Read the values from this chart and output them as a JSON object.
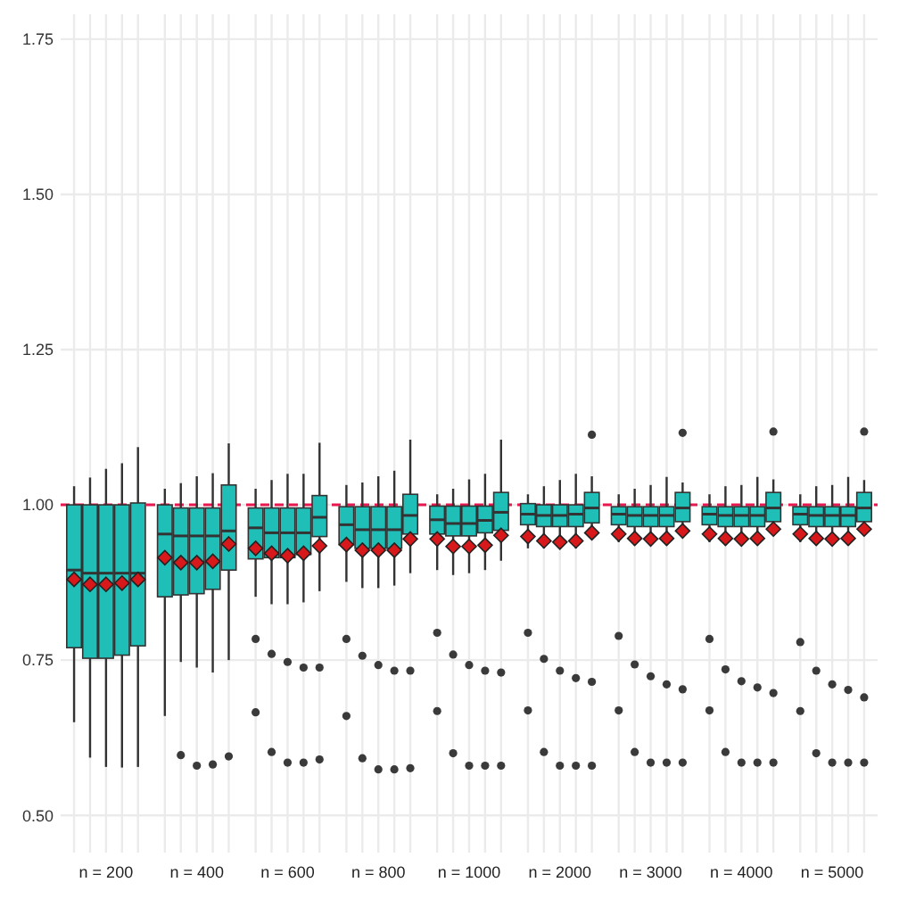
{
  "chart_data": {
    "type": "box",
    "categories": [
      "n = 200",
      "n = 400",
      "n = 600",
      "n = 800",
      "n = 1000",
      "n = 2000",
      "n = 3000",
      "n = 4000",
      "n = 5000"
    ],
    "ylim": [
      0.44,
      1.79
    ],
    "yticks": [
      {
        "value": 0.5,
        "label": "0.50"
      },
      {
        "value": 0.75,
        "label": "0.75"
      },
      {
        "value": 1,
        "label": "1.00"
      },
      {
        "value": 1.25,
        "label": "1.25"
      },
      {
        "value": 1.5,
        "label": "1.50"
      },
      {
        "value": 1.75,
        "label": "1.75"
      }
    ],
    "grid": true,
    "ref_lines": [
      {
        "axis": "y",
        "value": 1,
        "color": "#e8174f",
        "line_style": "dashed"
      }
    ],
    "series": [
      {
        "color": "#1fbfb8",
        "boxes": [
          {
            "low": 0.65,
            "q1": 0.77,
            "median": 0.895,
            "q3": 1.0,
            "high": 1.03,
            "mean": 0.88
          },
          {
            "low": 0.66,
            "q1": 0.852,
            "median": 0.953,
            "q3": 1.0,
            "high": 1.026,
            "mean": 0.915
          },
          {
            "low": 0.852,
            "q1": 0.913,
            "median": 0.963,
            "q3": 0.995,
            "high": 1.026,
            "mean": 0.93,
            "outliers": [
              0.784,
              0.666
            ]
          },
          {
            "low": 0.876,
            "q1": 0.936,
            "median": 0.968,
            "q3": 0.997,
            "high": 1.032,
            "mean": 0.936,
            "outliers": [
              0.784,
              0.66
            ]
          },
          {
            "low": 0.895,
            "q1": 0.953,
            "median": 0.976,
            "q3": 0.998,
            "high": 1.017,
            "mean": 0.945,
            "outliers": [
              0.794,
              0.668
            ]
          },
          {
            "low": 0.93,
            "q1": 0.968,
            "median": 0.985,
            "q3": 1.002,
            "high": 1.017,
            "mean": 0.949,
            "outliers": [
              0.794,
              0.669
            ]
          },
          {
            "low": 0.94,
            "q1": 0.968,
            "median": 0.985,
            "q3": 0.997,
            "high": 1.017,
            "mean": 0.953,
            "outliers": [
              0.789,
              0.669
            ]
          },
          {
            "low": 0.94,
            "q1": 0.968,
            "median": 0.985,
            "q3": 0.997,
            "high": 1.017,
            "mean": 0.953,
            "outliers": [
              0.784,
              0.669
            ]
          },
          {
            "low": 0.94,
            "q1": 0.968,
            "median": 0.985,
            "q3": 0.997,
            "high": 1.017,
            "mean": 0.953,
            "outliers": [
              0.779,
              0.668
            ]
          }
        ]
      },
      {
        "color": "#1fbfb8",
        "boxes": [
          {
            "low": 0.593,
            "q1": 0.753,
            "median": 0.89,
            "q3": 1.0,
            "high": 1.044,
            "mean": 0.872
          },
          {
            "low": 0.747,
            "q1": 0.855,
            "median": 0.95,
            "q3": 0.995,
            "high": 1.035,
            "mean": 0.907,
            "outliers": [
              0.597
            ]
          },
          {
            "low": 0.84,
            "q1": 0.915,
            "median": 0.955,
            "q3": 0.995,
            "high": 1.04,
            "mean": 0.922,
            "outliers": [
              0.76,
              0.602
            ]
          },
          {
            "low": 0.866,
            "q1": 0.93,
            "median": 0.96,
            "q3": 0.997,
            "high": 1.036,
            "mean": 0.927,
            "outliers": [
              0.757,
              0.592
            ]
          },
          {
            "low": 0.887,
            "q1": 0.95,
            "median": 0.97,
            "q3": 0.998,
            "high": 1.026,
            "mean": 0.933,
            "outliers": [
              0.759,
              0.6
            ]
          },
          {
            "low": 0.93,
            "q1": 0.965,
            "median": 0.983,
            "q3": 1.0,
            "high": 1.03,
            "mean": 0.942,
            "outliers": [
              0.752,
              0.602
            ]
          },
          {
            "low": 0.935,
            "q1": 0.965,
            "median": 0.983,
            "q3": 0.997,
            "high": 1.026,
            "mean": 0.946,
            "outliers": [
              0.743,
              0.602
            ]
          },
          {
            "low": 0.935,
            "q1": 0.965,
            "median": 0.983,
            "q3": 0.997,
            "high": 1.03,
            "mean": 0.946,
            "outliers": [
              0.735,
              0.602
            ]
          },
          {
            "low": 0.935,
            "q1": 0.965,
            "median": 0.983,
            "q3": 0.997,
            "high": 1.03,
            "mean": 0.946,
            "outliers": [
              0.733,
              0.6
            ]
          }
        ]
      },
      {
        "color": "#1fbfb8",
        "boxes": [
          {
            "low": 0.578,
            "q1": 0.753,
            "median": 0.89,
            "q3": 1.0,
            "high": 1.058,
            "mean": 0.872
          },
          {
            "low": 0.738,
            "q1": 0.857,
            "median": 0.95,
            "q3": 0.995,
            "high": 1.046,
            "mean": 0.907,
            "outliers": [
              0.58
            ]
          },
          {
            "low": 0.84,
            "q1": 0.915,
            "median": 0.955,
            "q3": 0.995,
            "high": 1.05,
            "mean": 0.918,
            "outliers": [
              0.747,
              0.585
            ]
          },
          {
            "low": 0.866,
            "q1": 0.93,
            "median": 0.96,
            "q3": 0.997,
            "high": 1.046,
            "mean": 0.927,
            "outliers": [
              0.742,
              0.574
            ]
          },
          {
            "low": 0.89,
            "q1": 0.95,
            "median": 0.97,
            "q3": 0.998,
            "high": 1.041,
            "mean": 0.933,
            "outliers": [
              0.742,
              0.58
            ]
          },
          {
            "low": 0.93,
            "q1": 0.965,
            "median": 0.983,
            "q3": 1.0,
            "high": 1.04,
            "mean": 0.94,
            "outliers": [
              0.733,
              0.58
            ]
          },
          {
            "low": 0.935,
            "q1": 0.965,
            "median": 0.983,
            "q3": 0.997,
            "high": 1.032,
            "mean": 0.945,
            "outliers": [
              0.724,
              0.585
            ]
          },
          {
            "low": 0.935,
            "q1": 0.965,
            "median": 0.983,
            "q3": 0.997,
            "high": 1.032,
            "mean": 0.945,
            "outliers": [
              0.716,
              0.585
            ]
          },
          {
            "low": 0.935,
            "q1": 0.965,
            "median": 0.983,
            "q3": 0.997,
            "high": 1.032,
            "mean": 0.945,
            "outliers": [
              0.711,
              0.585
            ]
          }
        ]
      },
      {
        "color": "#1fbfb8",
        "boxes": [
          {
            "low": 0.577,
            "q1": 0.758,
            "median": 0.89,
            "q3": 1.0,
            "high": 1.067,
            "mean": 0.874
          },
          {
            "low": 0.73,
            "q1": 0.864,
            "median": 0.95,
            "q3": 0.995,
            "high": 1.051,
            "mean": 0.909,
            "outliers": [
              0.582
            ]
          },
          {
            "low": 0.843,
            "q1": 0.92,
            "median": 0.955,
            "q3": 0.995,
            "high": 1.05,
            "mean": 0.922,
            "outliers": [
              0.738,
              0.585
            ]
          },
          {
            "low": 0.87,
            "q1": 0.93,
            "median": 0.96,
            "q3": 0.997,
            "high": 1.055,
            "mean": 0.927,
            "outliers": [
              0.733,
              0.574
            ]
          },
          {
            "low": 0.895,
            "q1": 0.955,
            "median": 0.975,
            "q3": 0.998,
            "high": 1.05,
            "mean": 0.935,
            "outliers": [
              0.733,
              0.58
            ]
          },
          {
            "low": 0.93,
            "q1": 0.965,
            "median": 0.985,
            "q3": 1.0,
            "high": 1.05,
            "mean": 0.942,
            "outliers": [
              0.721,
              0.58
            ]
          },
          {
            "low": 0.935,
            "q1": 0.965,
            "median": 0.983,
            "q3": 0.997,
            "high": 1.045,
            "mean": 0.946,
            "outliers": [
              0.711,
              0.585
            ]
          },
          {
            "low": 0.935,
            "q1": 0.965,
            "median": 0.983,
            "q3": 0.997,
            "high": 1.045,
            "mean": 0.946,
            "outliers": [
              0.706,
              0.585
            ]
          },
          {
            "low": 0.935,
            "q1": 0.965,
            "median": 0.983,
            "q3": 0.997,
            "high": 1.045,
            "mean": 0.946,
            "outliers": [
              0.702,
              0.585
            ]
          }
        ]
      },
      {
        "color": "#1fbfb8",
        "boxes": [
          {
            "low": 0.578,
            "q1": 0.773,
            "median": 0.89,
            "q3": 1.003,
            "high": 1.093,
            "mean": 0.88
          },
          {
            "low": 0.75,
            "q1": 0.895,
            "median": 0.958,
            "q3": 1.032,
            "high": 1.099,
            "mean": 0.937,
            "outliers": [
              0.595
            ]
          },
          {
            "low": 0.861,
            "q1": 0.949,
            "median": 0.98,
            "q3": 1.015,
            "high": 1.1,
            "mean": 0.934,
            "outliers": [
              0.738,
              0.59
            ]
          },
          {
            "low": 0.89,
            "q1": 0.953,
            "median": 0.983,
            "q3": 1.017,
            "high": 1.105,
            "mean": 0.945,
            "outliers": [
              0.733,
              0.576
            ]
          },
          {
            "low": 0.91,
            "q1": 0.959,
            "median": 0.988,
            "q3": 1.02,
            "high": 1.105,
            "mean": 0.951,
            "outliers": [
              0.73,
              0.58
            ]
          },
          {
            "low": 0.945,
            "q1": 0.971,
            "median": 0.995,
            "q3": 1.02,
            "high": 1.046,
            "mean": 0.955,
            "outliers": [
              1.113,
              0.715,
              0.58
            ]
          },
          {
            "low": 0.95,
            "q1": 0.973,
            "median": 0.995,
            "q3": 1.02,
            "high": 1.036,
            "mean": 0.958,
            "outliers": [
              1.116,
              0.703,
              0.585
            ]
          },
          {
            "low": 0.95,
            "q1": 0.973,
            "median": 0.995,
            "q3": 1.02,
            "high": 1.041,
            "mean": 0.961,
            "outliers": [
              1.118,
              0.697,
              0.585
            ]
          },
          {
            "low": 0.95,
            "q1": 0.973,
            "median": 0.995,
            "q3": 1.02,
            "high": 1.04,
            "mean": 0.961,
            "outliers": [
              1.118,
              0.69,
              0.585
            ]
          }
        ]
      }
    ]
  }
}
